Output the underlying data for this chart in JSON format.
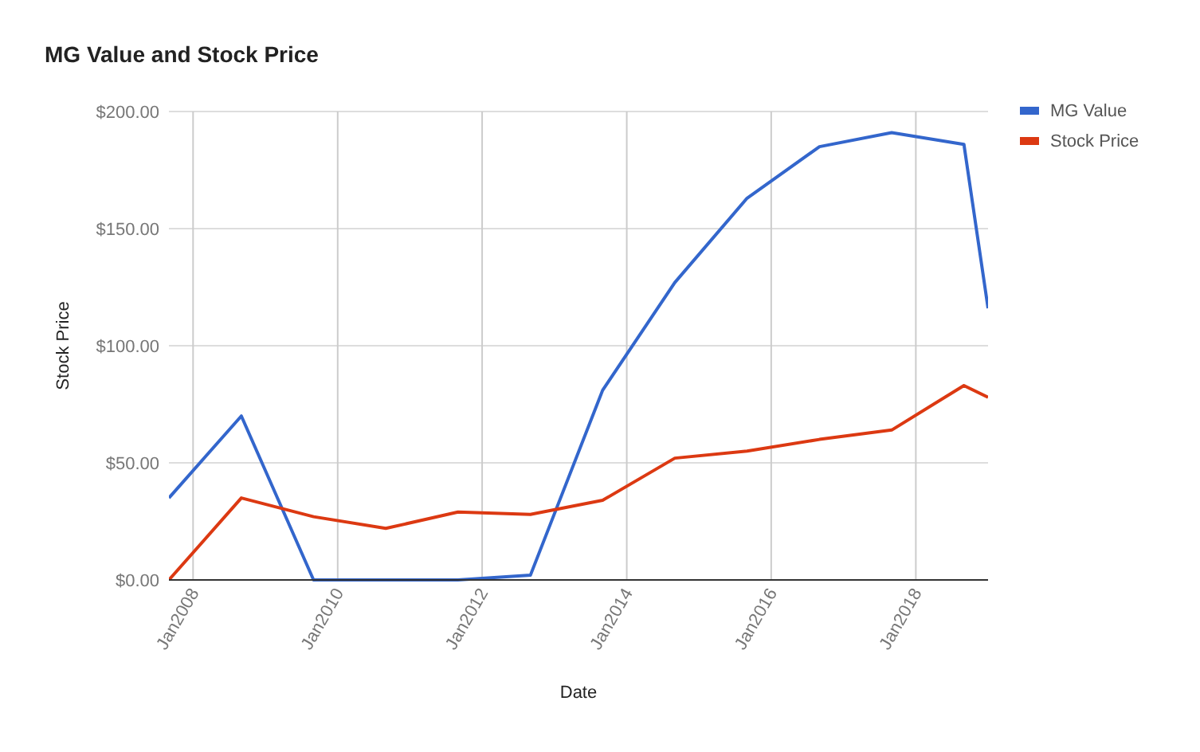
{
  "chart_data": {
    "type": "line",
    "title": "MG Value and Stock Price",
    "xlabel": "Date",
    "ylabel": "Stock Price",
    "xlim": [
      "2007-09",
      "2019-01"
    ],
    "xticks": [
      {
        "value": "2008-01",
        "label": "Jan2008"
      },
      {
        "value": "2010-01",
        "label": "Jan2010"
      },
      {
        "value": "2012-01",
        "label": "Jan2012"
      },
      {
        "value": "2014-01",
        "label": "Jan2014"
      },
      {
        "value": "2016-01",
        "label": "Jan2016"
      },
      {
        "value": "2018-01",
        "label": "Jan2018"
      }
    ],
    "ylim": [
      0,
      200
    ],
    "yticks": [
      {
        "value": 0,
        "label": "$0.00"
      },
      {
        "value": 50,
        "label": "$50.00"
      },
      {
        "value": 100,
        "label": "$100.00"
      },
      {
        "value": 150,
        "label": "$150.00"
      },
      {
        "value": 200,
        "label": "$200.00"
      }
    ],
    "x": [
      "2007-09",
      "2008-09",
      "2009-09",
      "2010-09",
      "2011-09",
      "2012-09",
      "2013-09",
      "2014-09",
      "2015-09",
      "2016-09",
      "2017-09",
      "2018-09",
      "2019-01"
    ],
    "series": [
      {
        "name": "MG Value",
        "color": "#3366cc",
        "values": [
          35,
          70,
          0,
          0,
          0,
          2,
          81,
          127,
          163,
          185,
          191,
          186,
          116
        ]
      },
      {
        "name": "Stock Price",
        "color": "#dc3912",
        "values": [
          0,
          35,
          27,
          22,
          29,
          28,
          34,
          52,
          55,
          60,
          64,
          83,
          78
        ]
      }
    ],
    "grid": true,
    "legend": "top right",
    "marker": "none",
    "line_style": "solid"
  }
}
